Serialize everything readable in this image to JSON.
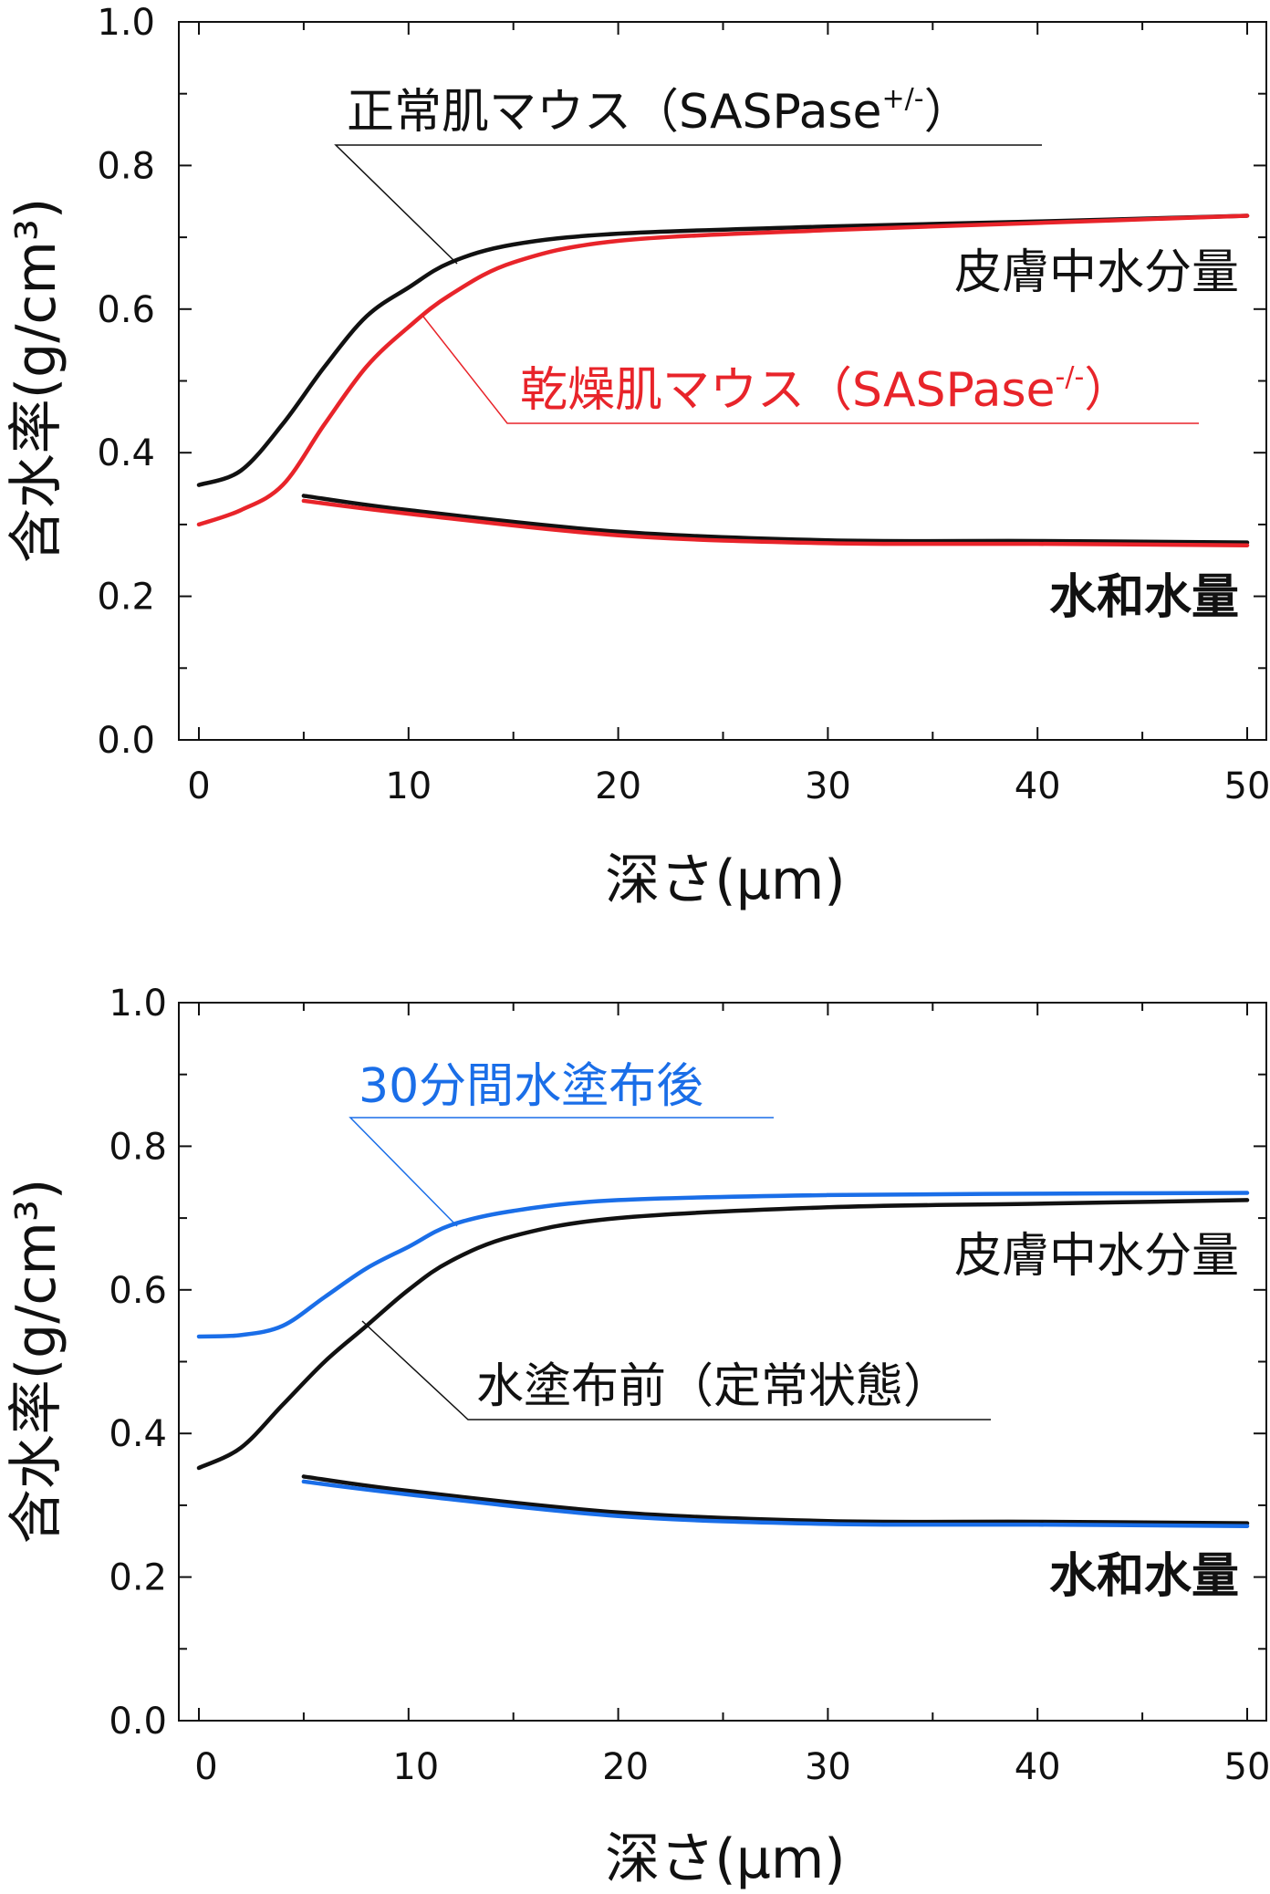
{
  "colors": {
    "black": "#111111",
    "red": "#e8242a",
    "blue": "#1a6ee8"
  },
  "chart_data": [
    {
      "type": "line",
      "xlabel": "深さ(μm)",
      "ylabel": "含水率(g/cm³)",
      "xlim": [
        -1,
        51
      ],
      "ylim": [
        0,
        1.0
      ],
      "xticks": [
        "0",
        "10",
        "20",
        "30",
        "40",
        "50"
      ],
      "yticks": [
        "0.0",
        "0.2",
        "0.4",
        "0.6",
        "0.8",
        "1.0"
      ],
      "annotations": {
        "series_a": {
          "text": "正常肌マウス（SASPase",
          "sup": "+/-",
          "close": "）"
        },
        "series_b": {
          "text": "乾燥肌マウス（SASPase",
          "sup": "-/-",
          "close": "）"
        },
        "skin_water": "皮膚中水分量",
        "hydration": "水和水量"
      },
      "series": [
        {
          "name": "正常肌マウス(SASPase+/-) 皮膚中水分量",
          "color": "black",
          "x": [
            0,
            2,
            4,
            6,
            8,
            10,
            12,
            15,
            20,
            30,
            40,
            50
          ],
          "y": [
            0.355,
            0.375,
            0.44,
            0.52,
            0.59,
            0.63,
            0.665,
            0.69,
            0.705,
            0.715,
            0.722,
            0.73
          ]
        },
        {
          "name": "乾燥肌マウス(SASPase-/-) 皮膚中水分量",
          "color": "red",
          "x": [
            0,
            2,
            4,
            6,
            8,
            10,
            12,
            15,
            20,
            30,
            40,
            50
          ],
          "y": [
            0.3,
            0.32,
            0.355,
            0.44,
            0.52,
            0.575,
            0.62,
            0.665,
            0.695,
            0.71,
            0.72,
            0.73
          ]
        },
        {
          "name": "正常肌マウス(SASPase+/-) 水和水量",
          "color": "black",
          "x": [
            5,
            10,
            20,
            30,
            40,
            50
          ],
          "y": [
            0.34,
            0.32,
            0.29,
            0.278,
            0.277,
            0.275
          ]
        },
        {
          "name": "乾燥肌マウス(SASPase-/-) 水和水量",
          "color": "red",
          "x": [
            5,
            10,
            20,
            30,
            40,
            50
          ],
          "y": [
            0.333,
            0.315,
            0.285,
            0.274,
            0.273,
            0.271
          ]
        }
      ]
    },
    {
      "type": "line",
      "xlabel": "深さ(μm)",
      "ylabel": "含水率(g/cm³)",
      "xlim": [
        -1,
        51
      ],
      "ylim": [
        0,
        1.0
      ],
      "xticks": [
        "0",
        "10",
        "20",
        "30",
        "40",
        "50"
      ],
      "yticks": [
        "0.0",
        "0.2",
        "0.4",
        "0.6",
        "0.8",
        "1.0"
      ],
      "annotations": {
        "series_a": {
          "text": "30分間水塗布後"
        },
        "series_b": {
          "text": "水塗布前（定常状態）"
        },
        "skin_water": "皮膚中水分量",
        "hydration": "水和水量"
      },
      "series": [
        {
          "name": "30分間水塗布後 皮膚中水分量",
          "color": "blue",
          "x": [
            0,
            2,
            4,
            6,
            8,
            10,
            12,
            15,
            20,
            30,
            40,
            50
          ],
          "y": [
            0.535,
            0.537,
            0.55,
            0.59,
            0.63,
            0.66,
            0.69,
            0.71,
            0.725,
            0.732,
            0.734,
            0.735
          ]
        },
        {
          "name": "水塗布前(定常状態) 皮膚中水分量",
          "color": "black",
          "x": [
            0,
            2,
            4,
            6,
            8,
            10,
            12,
            15,
            20,
            30,
            40,
            50
          ],
          "y": [
            0.352,
            0.38,
            0.44,
            0.5,
            0.55,
            0.6,
            0.64,
            0.675,
            0.7,
            0.715,
            0.72,
            0.725
          ]
        },
        {
          "name": "水塗布前(定常状態) 水和水量",
          "color": "black",
          "x": [
            5,
            10,
            20,
            30,
            40,
            50
          ],
          "y": [
            0.34,
            0.32,
            0.29,
            0.278,
            0.277,
            0.275
          ]
        },
        {
          "name": "30分間水塗布後 水和水量",
          "color": "blue",
          "x": [
            5,
            10,
            20,
            30,
            40,
            50
          ],
          "y": [
            0.333,
            0.315,
            0.285,
            0.274,
            0.273,
            0.271
          ]
        }
      ]
    }
  ]
}
